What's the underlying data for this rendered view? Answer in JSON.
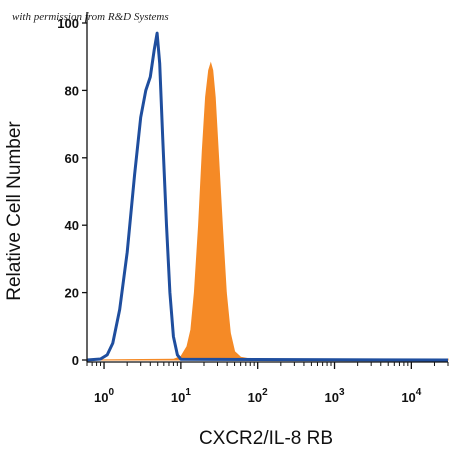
{
  "watermark": "with permission from R&D Systems",
  "chart_data": {
    "type": "histogram",
    "xlabel": "CXCR2/IL-8 RB",
    "ylabel": "Relative Cell Number",
    "x_scale": "log",
    "xlim": [
      0.6,
      30000
    ],
    "ylim": [
      0,
      100
    ],
    "yticks": [
      0,
      20,
      40,
      60,
      80,
      100
    ],
    "xticks": [
      {
        "value": 1,
        "base": "10",
        "exp": "0"
      },
      {
        "value": 10,
        "base": "10",
        "exp": "1"
      },
      {
        "value": 100,
        "base": "10",
        "exp": "2"
      },
      {
        "value": 1000,
        "base": "10",
        "exp": "3"
      },
      {
        "value": 10000,
        "base": "10",
        "exp": "4"
      }
    ],
    "grid": false,
    "series": [
      {
        "style": "outline",
        "color": "#1f4e9e",
        "points": [
          [
            0.6,
            0
          ],
          [
            0.9,
            0.3
          ],
          [
            1.1,
            1.5
          ],
          [
            1.3,
            5
          ],
          [
            1.6,
            15
          ],
          [
            2.0,
            32
          ],
          [
            2.5,
            55
          ],
          [
            3.0,
            72
          ],
          [
            3.5,
            80
          ],
          [
            4.0,
            84
          ],
          [
            4.5,
            92
          ],
          [
            4.9,
            97
          ],
          [
            5.3,
            88
          ],
          [
            5.8,
            66
          ],
          [
            6.5,
            40
          ],
          [
            7.2,
            20
          ],
          [
            8.0,
            7
          ],
          [
            9.0,
            1.5
          ],
          [
            10,
            0.2
          ],
          [
            30000,
            0
          ]
        ]
      },
      {
        "style": "filled",
        "color": "#f58a26",
        "points": [
          [
            0.6,
            0
          ],
          [
            8.0,
            0.2
          ],
          [
            10,
            1
          ],
          [
            12,
            4
          ],
          [
            13.5,
            9
          ],
          [
            15,
            20
          ],
          [
            17,
            40
          ],
          [
            19,
            62
          ],
          [
            21,
            78
          ],
          [
            23,
            86
          ],
          [
            24.5,
            88
          ],
          [
            26,
            86
          ],
          [
            28,
            78
          ],
          [
            31,
            60
          ],
          [
            35,
            38
          ],
          [
            39,
            20
          ],
          [
            44,
            8
          ],
          [
            50,
            2.5
          ],
          [
            60,
            0.8
          ],
          [
            80,
            0.3
          ],
          [
            30000,
            0.3
          ]
        ]
      }
    ]
  }
}
